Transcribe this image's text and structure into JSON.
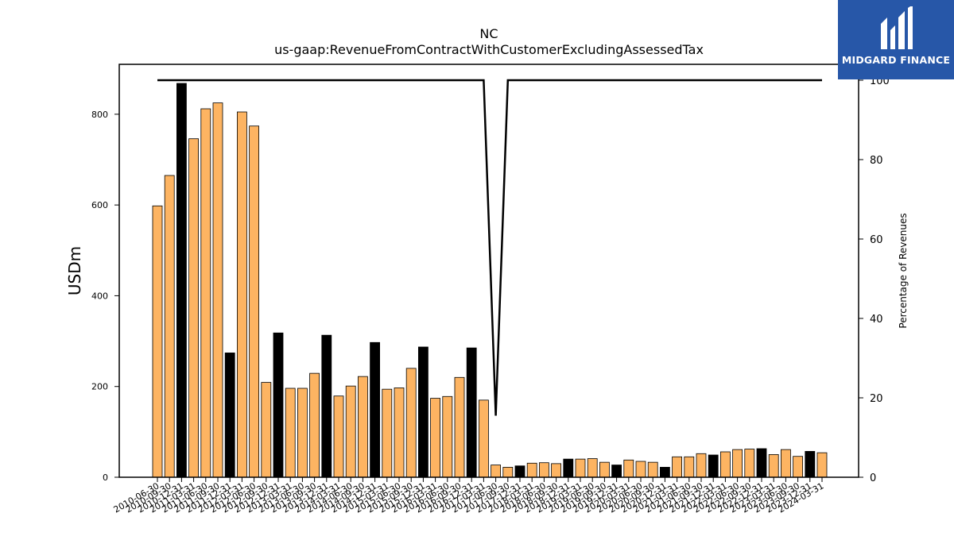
{
  "chart_data": {
    "type": "bar",
    "title": "NC",
    "subtitle": "us-gaap:RevenueFromContractWithCustomerExcludingAssessedTax",
    "ylabel": "USDm",
    "y2label": "Percentage of Revenues",
    "ylim": [
      0,
      910
    ],
    "y2lim": [
      0,
      104
    ],
    "yticks": [
      0,
      200,
      400,
      600,
      800
    ],
    "y2ticks": [
      0,
      20,
      40,
      60,
      80,
      100
    ],
    "legend": "none",
    "grid": false,
    "bar_color": "#fdb462",
    "highlight_color": "#000000",
    "categories": [
      "2010-06-30",
      "2010-09-30",
      "2010-12-31",
      "2011-03-31",
      "2011-06-30",
      "2011-09-30",
      "2011-12-31",
      "2012-03-31",
      "2012-06-30",
      "2012-09-30",
      "2012-12-31",
      "2013-03-31",
      "2013-06-30",
      "2013-09-30",
      "2013-12-31",
      "2014-03-31",
      "2014-06-30",
      "2014-09-30",
      "2014-12-31",
      "2015-03-31",
      "2015-06-30",
      "2015-09-30",
      "2015-12-31",
      "2016-03-31",
      "2016-06-30",
      "2016-09-30",
      "2016-12-31",
      "2017-03-31",
      "2017-06-30",
      "2017-09-30",
      "2017-12-31",
      "2018-03-31",
      "2018-06-30",
      "2018-09-30",
      "2018-12-31",
      "2019-03-31",
      "2019-06-30",
      "2019-09-30",
      "2019-12-31",
      "2020-03-31",
      "2020-06-30",
      "2020-09-30",
      "2020-12-31",
      "2021-03-31",
      "2021-06-30",
      "2021-09-30",
      "2021-12-31",
      "2022-03-31",
      "2022-06-30",
      "2022-09-30",
      "2022-12-31",
      "2023-03-31",
      "2023-06-30",
      "2023-09-30",
      "2023-12-31",
      "2024-03-31"
    ],
    "values": [
      598,
      665,
      868,
      746,
      812,
      825,
      274,
      805,
      774,
      209,
      318,
      196,
      196,
      229,
      313,
      179,
      201,
      222,
      297,
      194,
      197,
      240,
      287,
      174,
      178,
      220,
      285,
      170,
      27,
      22,
      25,
      31,
      32,
      30,
      40,
      40,
      41,
      33,
      27,
      38,
      35,
      33,
      22,
      45,
      45,
      52,
      49,
      56,
      61,
      62,
      63,
      50,
      61,
      46,
      57,
      54
    ],
    "highlight": [
      false,
      false,
      true,
      false,
      false,
      false,
      true,
      false,
      false,
      false,
      true,
      false,
      false,
      false,
      true,
      false,
      false,
      false,
      true,
      false,
      false,
      false,
      true,
      false,
      false,
      false,
      true,
      false,
      false,
      false,
      true,
      false,
      false,
      false,
      true,
      false,
      false,
      false,
      true,
      false,
      false,
      false,
      true,
      false,
      false,
      false,
      true,
      false,
      false,
      false,
      true,
      false,
      false,
      false,
      true,
      false
    ],
    "series": [
      {
        "axis": "right",
        "type": "line",
        "color": "#000000",
        "values": [
          100,
          100,
          100,
          100,
          100,
          100,
          100,
          100,
          100,
          100,
          100,
          100,
          100,
          100,
          100,
          100,
          100,
          100,
          100,
          100,
          100,
          100,
          100,
          100,
          100,
          100,
          100,
          100,
          15.5,
          100,
          100,
          100,
          100,
          100,
          100,
          100,
          100,
          100,
          100,
          100,
          100,
          100,
          100,
          100,
          100,
          100,
          100,
          100,
          100,
          100,
          100,
          100,
          100,
          100,
          100,
          100
        ]
      }
    ]
  },
  "logo": {
    "text": "MIDGARD FINANCE"
  }
}
